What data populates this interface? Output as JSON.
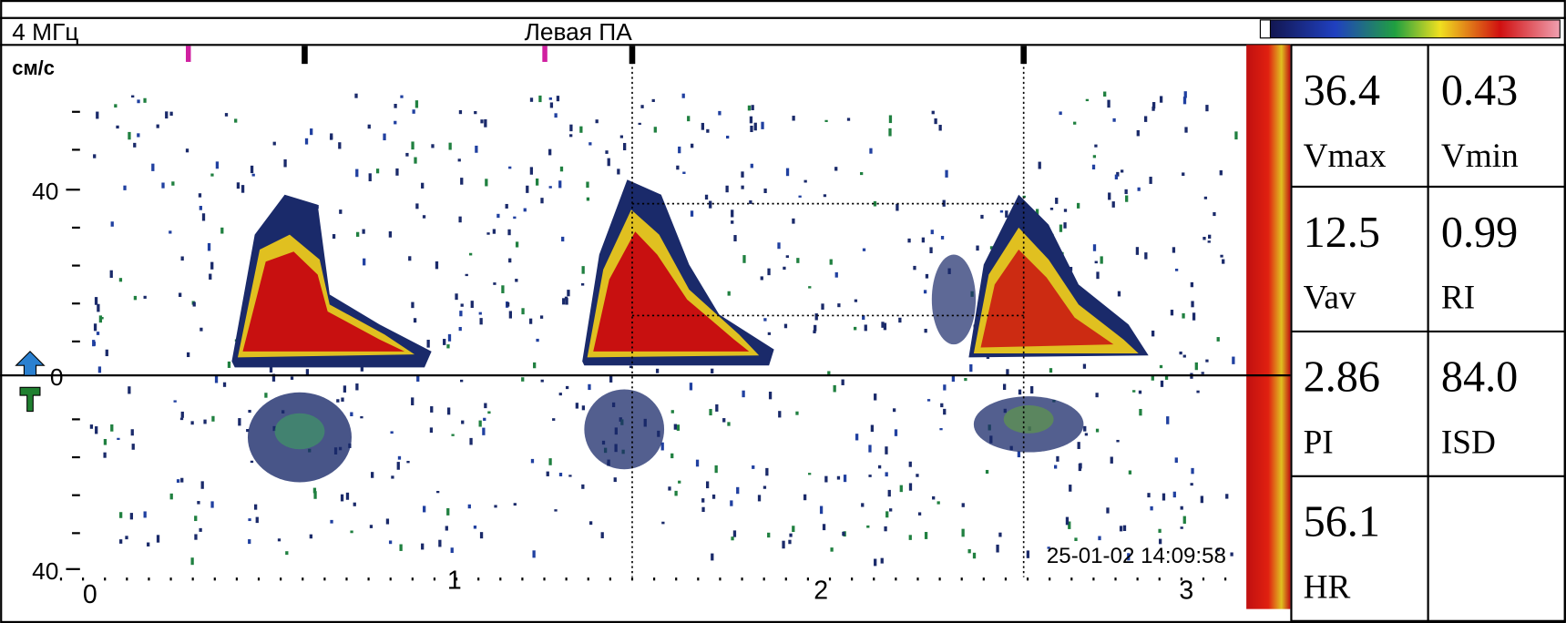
{
  "header": {
    "frequency": "4 МГц",
    "title": "Левая ПА"
  },
  "spectrum": {
    "unit": "см/с",
    "y_labels": [
      "40",
      "0",
      "40"
    ],
    "x_labels": [
      "0",
      "1",
      "2",
      "3"
    ],
    "timestamp": "25-01-02 14:09:58"
  },
  "measurements": [
    {
      "value": "36.4",
      "label": "Vmax"
    },
    {
      "value": "0.43",
      "label": "Vmin"
    },
    {
      "value": "12.5",
      "label": "Vav"
    },
    {
      "value": "0.99",
      "label": "RI"
    },
    {
      "value": "2.86",
      "label": "PI"
    },
    {
      "value": "84.0",
      "label": "ISD"
    },
    {
      "value": "56.1",
      "label": "HR"
    }
  ]
}
